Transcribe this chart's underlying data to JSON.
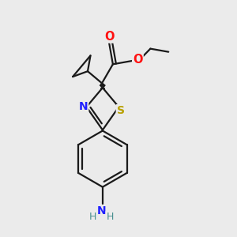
{
  "background_color": "#ebebeb",
  "bond_color": "#1a1a1a",
  "atom_colors": {
    "N": "#2020ff",
    "O": "#ff1010",
    "S": "#b8a000",
    "NH2_N": "#2020ff",
    "NH2_H": "#4a9090"
  },
  "figsize": [
    3.0,
    3.0
  ],
  "dpi": 100
}
